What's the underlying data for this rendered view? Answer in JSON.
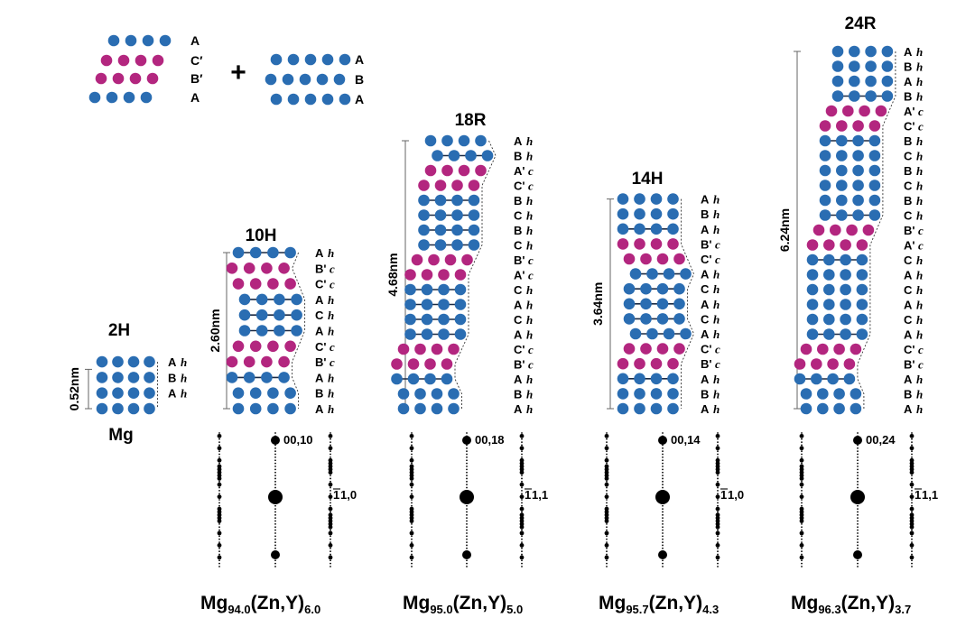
{
  "colors": {
    "blue": "#2a6db2",
    "magenta": "#b3267f",
    "black": "#000000",
    "gray": "#666666"
  },
  "legend": {
    "left_labels": [
      "A",
      "C′",
      "B′",
      "A"
    ],
    "plus": "+",
    "right_labels": [
      "A",
      "B",
      "A"
    ]
  },
  "structures": [
    {
      "id": "2H",
      "title": "2H",
      "dimension": "0.52nm",
      "material": "Mg",
      "layers": [
        {
          "label": "A",
          "type": "h",
          "color": "blue",
          "offset": 0
        },
        {
          "label": "B",
          "type": "h",
          "color": "blue",
          "offset": 0
        },
        {
          "label": "A",
          "type": "h",
          "color": "blue",
          "offset": 0
        },
        {
          "label": "",
          "type": "",
          "color": "blue",
          "offset": 0
        }
      ]
    },
    {
      "id": "10H",
      "title": "10H",
      "dimension": "2.60nm",
      "composition": {
        "base": "Mg",
        "sub1": "94.0",
        "mid": "(Zn,Y)",
        "sub2": "6.0"
      },
      "spot_labels": {
        "top": "00,10",
        "mid_overline": "1",
        "mid_rest": "1,0"
      },
      "layers": [
        {
          "label": "A",
          "type": "h",
          "color": "blue",
          "offset": 0,
          "bonded": true
        },
        {
          "label": "B'",
          "type": "c",
          "color": "magenta",
          "offset": -1
        },
        {
          "label": "C'",
          "type": "c",
          "color": "magenta",
          "offset": 0
        },
        {
          "label": "A",
          "type": "h",
          "color": "blue",
          "offset": 1,
          "bonded": true
        },
        {
          "label": "C",
          "type": "h",
          "color": "blue",
          "offset": 1,
          "bonded": true
        },
        {
          "label": "A",
          "type": "h",
          "color": "blue",
          "offset": 1,
          "bonded": true
        },
        {
          "label": "C'",
          "type": "c",
          "color": "magenta",
          "offset": 0
        },
        {
          "label": "B'",
          "type": "c",
          "color": "magenta",
          "offset": -1
        },
        {
          "label": "A",
          "type": "h",
          "color": "blue",
          "offset": -1,
          "bonded": true
        },
        {
          "label": "B",
          "type": "h",
          "color": "blue",
          "offset": 0
        },
        {
          "label": "A",
          "type": "h",
          "color": "blue",
          "offset": 0
        }
      ]
    },
    {
      "id": "18R",
      "title": "18R",
      "dimension": "4.68nm",
      "composition": {
        "base": "Mg",
        "sub1": "95.0",
        "mid": "(Zn,Y)",
        "sub2": "5.0"
      },
      "spot_labels": {
        "top": "00,18",
        "mid_overline": "1",
        "mid_rest": "1,1"
      },
      "layers": [
        {
          "label": "A",
          "type": "h",
          "color": "blue",
          "offset": 0
        },
        {
          "label": "B",
          "type": "h",
          "color": "blue",
          "offset": 1,
          "bonded": true
        },
        {
          "label": "A'",
          "type": "c",
          "color": "magenta",
          "offset": 0
        },
        {
          "label": "C'",
          "type": "c",
          "color": "magenta",
          "offset": -1
        },
        {
          "label": "B",
          "type": "h",
          "color": "blue",
          "offset": -1,
          "bonded": true
        },
        {
          "label": "C",
          "type": "h",
          "color": "blue",
          "offset": -1,
          "bonded": true
        },
        {
          "label": "B",
          "type": "h",
          "color": "blue",
          "offset": -1,
          "bonded": true
        },
        {
          "label": "C",
          "type": "h",
          "color": "blue",
          "offset": -1,
          "bonded": true
        },
        {
          "label": "B'",
          "type": "c",
          "color": "magenta",
          "offset": -2
        },
        {
          "label": "A'",
          "type": "c",
          "color": "magenta",
          "offset": -3
        },
        {
          "label": "C",
          "type": "h",
          "color": "blue",
          "offset": -3,
          "bonded": true
        },
        {
          "label": "A",
          "type": "h",
          "color": "blue",
          "offset": -3,
          "bonded": true
        },
        {
          "label": "C",
          "type": "h",
          "color": "blue",
          "offset": -3,
          "bonded": true
        },
        {
          "label": "A",
          "type": "h",
          "color": "blue",
          "offset": -3,
          "bonded": true
        },
        {
          "label": "C'",
          "type": "c",
          "color": "magenta",
          "offset": -4
        },
        {
          "label": "B'",
          "type": "c",
          "color": "magenta",
          "offset": -5
        },
        {
          "label": "A",
          "type": "h",
          "color": "blue",
          "offset": -5,
          "bonded": true
        },
        {
          "label": "B",
          "type": "h",
          "color": "blue",
          "offset": -4
        },
        {
          "label": "A",
          "type": "h",
          "color": "blue",
          "offset": -4
        }
      ]
    },
    {
      "id": "14H",
      "title": "14H",
      "dimension": "3.64nm",
      "composition": {
        "base": "Mg",
        "sub1": "95.7",
        "mid": "(Zn,Y)",
        "sub2": "4.3"
      },
      "spot_labels": {
        "top": "00,14",
        "mid_overline": "1",
        "mid_rest": "1,0"
      },
      "layers": [
        {
          "label": "A",
          "type": "h",
          "color": "blue",
          "offset": 0
        },
        {
          "label": "B",
          "type": "h",
          "color": "blue",
          "offset": 0
        },
        {
          "label": "A",
          "type": "h",
          "color": "blue",
          "offset": 0,
          "bonded": true
        },
        {
          "label": "B'",
          "type": "c",
          "color": "magenta",
          "offset": 0
        },
        {
          "label": "C'",
          "type": "c",
          "color": "magenta",
          "offset": 1
        },
        {
          "label": "A",
          "type": "h",
          "color": "blue",
          "offset": 2,
          "bonded": true
        },
        {
          "label": "C",
          "type": "h",
          "color": "blue",
          "offset": 1,
          "bonded": true
        },
        {
          "label": "A",
          "type": "h",
          "color": "blue",
          "offset": 1,
          "bonded": true
        },
        {
          "label": "C",
          "type": "h",
          "color": "blue",
          "offset": 1,
          "bonded": true
        },
        {
          "label": "A",
          "type": "h",
          "color": "blue",
          "offset": 2,
          "bonded": true
        },
        {
          "label": "C'",
          "type": "c",
          "color": "magenta",
          "offset": 1
        },
        {
          "label": "B'",
          "type": "c",
          "color": "magenta",
          "offset": 0
        },
        {
          "label": "A",
          "type": "h",
          "color": "blue",
          "offset": 0,
          "bonded": true
        },
        {
          "label": "B",
          "type": "h",
          "color": "blue",
          "offset": 0
        },
        {
          "label": "A",
          "type": "h",
          "color": "blue",
          "offset": 0
        }
      ]
    },
    {
      "id": "24R",
      "title": "24R",
      "dimension": "6.24nm",
      "composition": {
        "base": "Mg",
        "sub1": "96.3",
        "mid": "(Zn,Y)",
        "sub2": "3.7"
      },
      "spot_labels": {
        "top": "00,24",
        "mid_overline": "1",
        "mid_rest": "1,1"
      },
      "layers": [
        {
          "label": "A",
          "type": "h",
          "color": "blue",
          "offset": 0
        },
        {
          "label": "B",
          "type": "h",
          "color": "blue",
          "offset": 0
        },
        {
          "label": "A",
          "type": "h",
          "color": "blue",
          "offset": 0
        },
        {
          "label": "B",
          "type": "h",
          "color": "blue",
          "offset": 0,
          "bonded": true
        },
        {
          "label": "A'",
          "type": "c",
          "color": "magenta",
          "offset": -1
        },
        {
          "label": "C'",
          "type": "c",
          "color": "magenta",
          "offset": -2
        },
        {
          "label": "B",
          "type": "h",
          "color": "blue",
          "offset": -2,
          "bonded": true
        },
        {
          "label": "C",
          "type": "h",
          "color": "blue",
          "offset": -2
        },
        {
          "label": "B",
          "type": "h",
          "color": "blue",
          "offset": -2
        },
        {
          "label": "C",
          "type": "h",
          "color": "blue",
          "offset": -2
        },
        {
          "label": "B",
          "type": "h",
          "color": "blue",
          "offset": -2
        },
        {
          "label": "C",
          "type": "h",
          "color": "blue",
          "offset": -2,
          "bonded": true
        },
        {
          "label": "B'",
          "type": "c",
          "color": "magenta",
          "offset": -3
        },
        {
          "label": "A'",
          "type": "c",
          "color": "magenta",
          "offset": -4
        },
        {
          "label": "C",
          "type": "h",
          "color": "blue",
          "offset": -4,
          "bonded": true
        },
        {
          "label": "A",
          "type": "h",
          "color": "blue",
          "offset": -4
        },
        {
          "label": "C",
          "type": "h",
          "color": "blue",
          "offset": -4
        },
        {
          "label": "A",
          "type": "h",
          "color": "blue",
          "offset": -4
        },
        {
          "label": "C",
          "type": "h",
          "color": "blue",
          "offset": -4
        },
        {
          "label": "A",
          "type": "h",
          "color": "blue",
          "offset": -4,
          "bonded": true
        },
        {
          "label": "C'",
          "type": "c",
          "color": "magenta",
          "offset": -5
        },
        {
          "label": "B'",
          "type": "c",
          "color": "magenta",
          "offset": -6
        },
        {
          "label": "A",
          "type": "h",
          "color": "blue",
          "offset": -6,
          "bonded": true
        },
        {
          "label": "B",
          "type": "h",
          "color": "blue",
          "offset": -5
        },
        {
          "label": "A",
          "type": "h",
          "color": "blue",
          "offset": -5
        }
      ]
    }
  ]
}
